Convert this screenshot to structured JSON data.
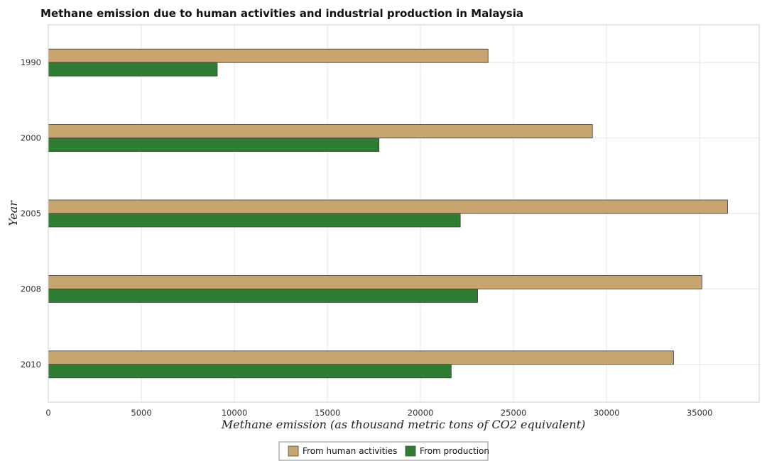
{
  "chart_data": {
    "type": "bar",
    "orientation": "horizontal",
    "title": "Methane emission due to human activities and industrial production in Malaysia",
    "xlabel": "Methane emission (as thousand metric tons of CO2 equivalent)",
    "ylabel": "Year",
    "xlim": [
      0,
      38200
    ],
    "xticks": [
      0,
      5000,
      10000,
      15000,
      20000,
      25000,
      30000,
      35000
    ],
    "xtick_labels": [
      "0",
      "5000",
      "10000",
      "15000",
      "20000",
      "25000",
      "30000",
      "35000"
    ],
    "categories": [
      "1990",
      "2000",
      "2005",
      "2008",
      "2010"
    ],
    "series": [
      {
        "name": "From human activities",
        "color": "#c8a46e",
        "values": [
          23630,
          29240,
          36500,
          35120,
          33600
        ]
      },
      {
        "name": "From production",
        "color": "#2e7d32",
        "values": [
          9080,
          17770,
          22140,
          23070,
          21650
        ]
      }
    ],
    "grid": true,
    "legend_position": "bottom-center"
  }
}
